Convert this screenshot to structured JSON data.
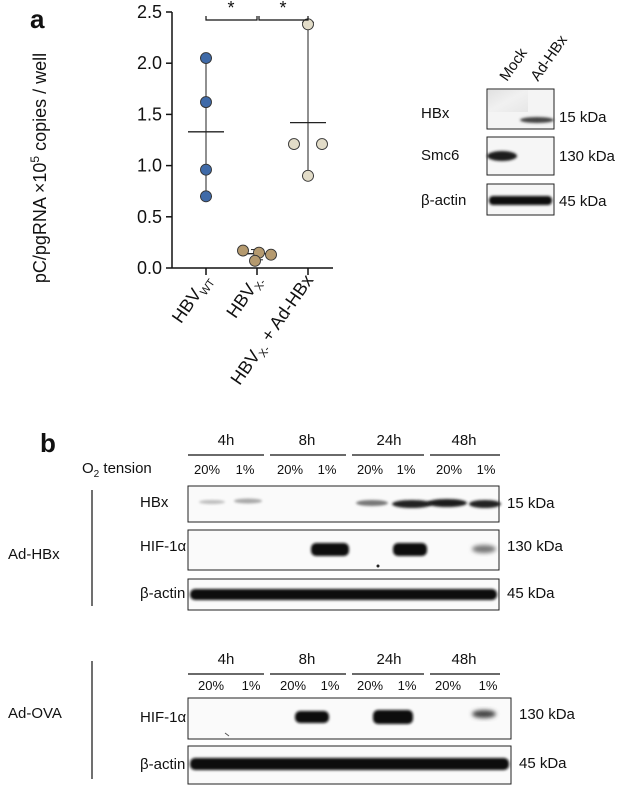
{
  "panel_a": {
    "letter": "a",
    "chart_data": {
      "type": "scatter",
      "ylabel_main": "pC/pgRNA ×10",
      "ylabel_exp": "5",
      "ylabel_tail": " copies / well",
      "ylim": [
        0,
        2.5
      ],
      "yticks": [
        {
          "value": 0.0,
          "label": "0.0"
        },
        {
          "value": 0.5,
          "label": "0.5"
        },
        {
          "value": 1.0,
          "label": "1.0"
        },
        {
          "value": 1.5,
          "label": "1.5"
        },
        {
          "value": 2.0,
          "label": "2.0"
        },
        {
          "value": 2.5,
          "label": "2.5"
        }
      ],
      "groups": [
        {
          "base": "HBV",
          "sub": "WT",
          "tail": "",
          "color": "#3f6aa8",
          "points": [
            2.05,
            1.62,
            0.96,
            0.7
          ],
          "mean": 1.33,
          "err": [
            0.7,
            2.05
          ]
        },
        {
          "base": "HBV",
          "sub": "X-",
          "tail": "",
          "color": "#b59a6f",
          "points": [
            0.17,
            0.15,
            0.13,
            0.07
          ],
          "mean": 0.14,
          "err": [
            0.08,
            0.18
          ]
        },
        {
          "base": "HBV",
          "sub": "X-",
          "tail": " + Ad-HBx",
          "color": "#e2dcc8",
          "points": [
            2.38,
            1.21,
            1.21,
            0.9
          ],
          "mean": 1.42,
          "err": [
            0.9,
            2.4
          ]
        }
      ],
      "significance": [
        "*",
        "*"
      ]
    },
    "blot": {
      "lanes": [
        "Mock",
        "Ad-HBx"
      ],
      "rows": [
        {
          "label": "HBx",
          "kda": "15 kDa"
        },
        {
          "label": "Smc6",
          "kda": "130 kDa"
        },
        {
          "label": "β-actin",
          "kda": "45 kDa"
        }
      ]
    }
  },
  "panel_b": {
    "letter": "b",
    "o2_prefix": "O",
    "o2_sub": "2",
    "o2_suffix": " tension",
    "timepoints": [
      "4h",
      "8h",
      "24h",
      "48h"
    ],
    "percents": [
      "20%",
      "1%"
    ],
    "groups": [
      {
        "name": "Ad-HBx",
        "rows": [
          {
            "label": "HBx",
            "kda": "15 kDa"
          },
          {
            "label": "HIF-1α",
            "kda": "130 kDa"
          },
          {
            "label": "β-actin",
            "kda": "45 kDa"
          }
        ]
      },
      {
        "name": "Ad-OVA",
        "rows": [
          {
            "label": "HIF-1α",
            "kda": "130 kDa"
          },
          {
            "label": "β-actin",
            "kda": "45 kDa"
          }
        ]
      }
    ]
  }
}
